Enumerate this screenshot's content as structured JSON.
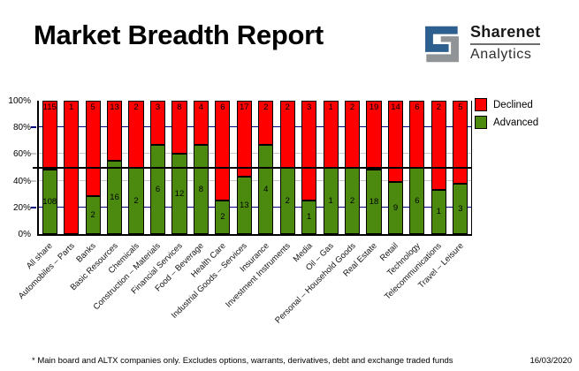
{
  "header": {
    "title": "Market Breadth Report",
    "logo": {
      "brand_top": "Sharenet",
      "brand_bottom": "Analytics",
      "glyph_blue": "#2d608f",
      "glyph_gray": "#919497"
    }
  },
  "chart_data": {
    "type": "bar",
    "stacked": true,
    "stack_mode": "percent",
    "title": "Market Breadth Report",
    "categories": [
      "All share",
      "Automobiles – Parts",
      "Banks",
      "Basic Resources",
      "Chemicals",
      "Construction – Materials",
      "Financial Services",
      "Food – Beverage",
      "Health Care",
      "Industrial Goods – Services",
      "Insurance",
      "Investment Instruments",
      "Media",
      "Oil – Gas",
      "Personal – Household Goods",
      "Real Estate",
      "Retail",
      "Technology",
      "Telecommunications",
      "Travel – Leisure"
    ],
    "series": [
      {
        "name": "Declined",
        "color": "#ff0000",
        "values": [
          115,
          1,
          5,
          13,
          2,
          3,
          8,
          4,
          6,
          17,
          2,
          2,
          3,
          1,
          2,
          19,
          14,
          6,
          2,
          5
        ]
      },
      {
        "name": "Advanced",
        "color": "#4b8a0e",
        "values": [
          108,
          0,
          2,
          16,
          2,
          6,
          12,
          8,
          2,
          13,
          4,
          2,
          1,
          1,
          2,
          18,
          9,
          6,
          1,
          3
        ]
      }
    ],
    "ylim": [
      0,
      100
    ],
    "y_ticks": [
      "0%",
      "20%",
      "40%",
      "60%",
      "80%",
      "100%"
    ],
    "reference_line": {
      "value": 50,
      "color": "#000000"
    },
    "gridlines": [
      {
        "value": 20,
        "color": "#000080"
      },
      {
        "value": 40,
        "color": "#c8c8c8"
      },
      {
        "value": 60,
        "color": "#c8c8c8"
      },
      {
        "value": 80,
        "color": "#000080"
      }
    ],
    "legend_position": "top-right",
    "bar_labels": "segment counts shown inside bars"
  },
  "footer": {
    "note": "* Main board and ALTX companies only. Excludes options, warrants, derivatives, debt and exchange traded funds",
    "date": "16/03/2020"
  }
}
